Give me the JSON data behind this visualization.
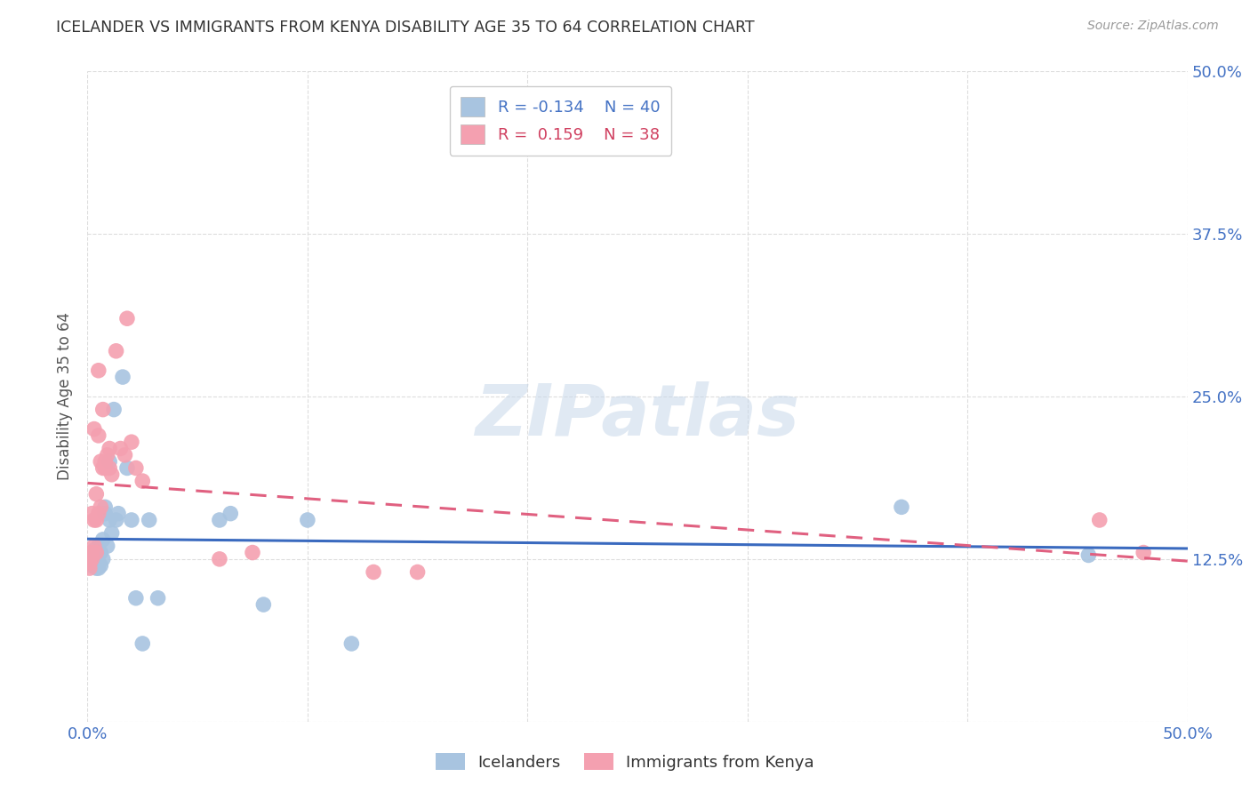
{
  "title": "ICELANDER VS IMMIGRANTS FROM KENYA DISABILITY AGE 35 TO 64 CORRELATION CHART",
  "source": "Source: ZipAtlas.com",
  "ylabel": "Disability Age 35 to 64",
  "xlim": [
    0.0,
    0.5
  ],
  "ylim": [
    0.0,
    0.5
  ],
  "grid_color": "#dddddd",
  "background_color": "#ffffff",
  "icelander_color": "#a8c4e0",
  "kenya_color": "#f4a0b0",
  "icelander_line_color": "#3a6abf",
  "kenya_line_color": "#e06080",
  "legend_r_icelander": "-0.134",
  "legend_n_icelander": "40",
  "legend_r_kenya": "0.159",
  "legend_n_kenya": "38",
  "watermark": "ZIPatlas",
  "icelander_x": [
    0.001,
    0.002,
    0.002,
    0.002,
    0.003,
    0.003,
    0.003,
    0.004,
    0.004,
    0.004,
    0.005,
    0.005,
    0.005,
    0.006,
    0.006,
    0.007,
    0.007,
    0.008,
    0.008,
    0.009,
    0.01,
    0.01,
    0.011,
    0.012,
    0.013,
    0.014,
    0.016,
    0.018,
    0.02,
    0.022,
    0.025,
    0.028,
    0.032,
    0.06,
    0.065,
    0.08,
    0.1,
    0.12,
    0.37,
    0.455
  ],
  "icelander_y": [
    0.128,
    0.13,
    0.125,
    0.12,
    0.132,
    0.128,
    0.122,
    0.118,
    0.125,
    0.13,
    0.118,
    0.135,
    0.122,
    0.12,
    0.13,
    0.14,
    0.125,
    0.16,
    0.165,
    0.135,
    0.2,
    0.155,
    0.145,
    0.24,
    0.155,
    0.16,
    0.265,
    0.195,
    0.155,
    0.095,
    0.06,
    0.155,
    0.095,
    0.155,
    0.16,
    0.09,
    0.155,
    0.06,
    0.165,
    0.128
  ],
  "kenya_x": [
    0.001,
    0.001,
    0.002,
    0.002,
    0.002,
    0.002,
    0.003,
    0.003,
    0.003,
    0.004,
    0.004,
    0.004,
    0.005,
    0.005,
    0.005,
    0.006,
    0.006,
    0.007,
    0.007,
    0.008,
    0.008,
    0.009,
    0.01,
    0.01,
    0.011,
    0.013,
    0.015,
    0.017,
    0.018,
    0.02,
    0.022,
    0.025,
    0.06,
    0.075,
    0.13,
    0.15,
    0.46,
    0.48
  ],
  "kenya_y": [
    0.122,
    0.118,
    0.128,
    0.13,
    0.16,
    0.125,
    0.135,
    0.155,
    0.225,
    0.155,
    0.13,
    0.175,
    0.16,
    0.22,
    0.27,
    0.165,
    0.2,
    0.195,
    0.24,
    0.2,
    0.195,
    0.205,
    0.21,
    0.195,
    0.19,
    0.285,
    0.21,
    0.205,
    0.31,
    0.215,
    0.195,
    0.185,
    0.125,
    0.13,
    0.115,
    0.115,
    0.155,
    0.13
  ]
}
